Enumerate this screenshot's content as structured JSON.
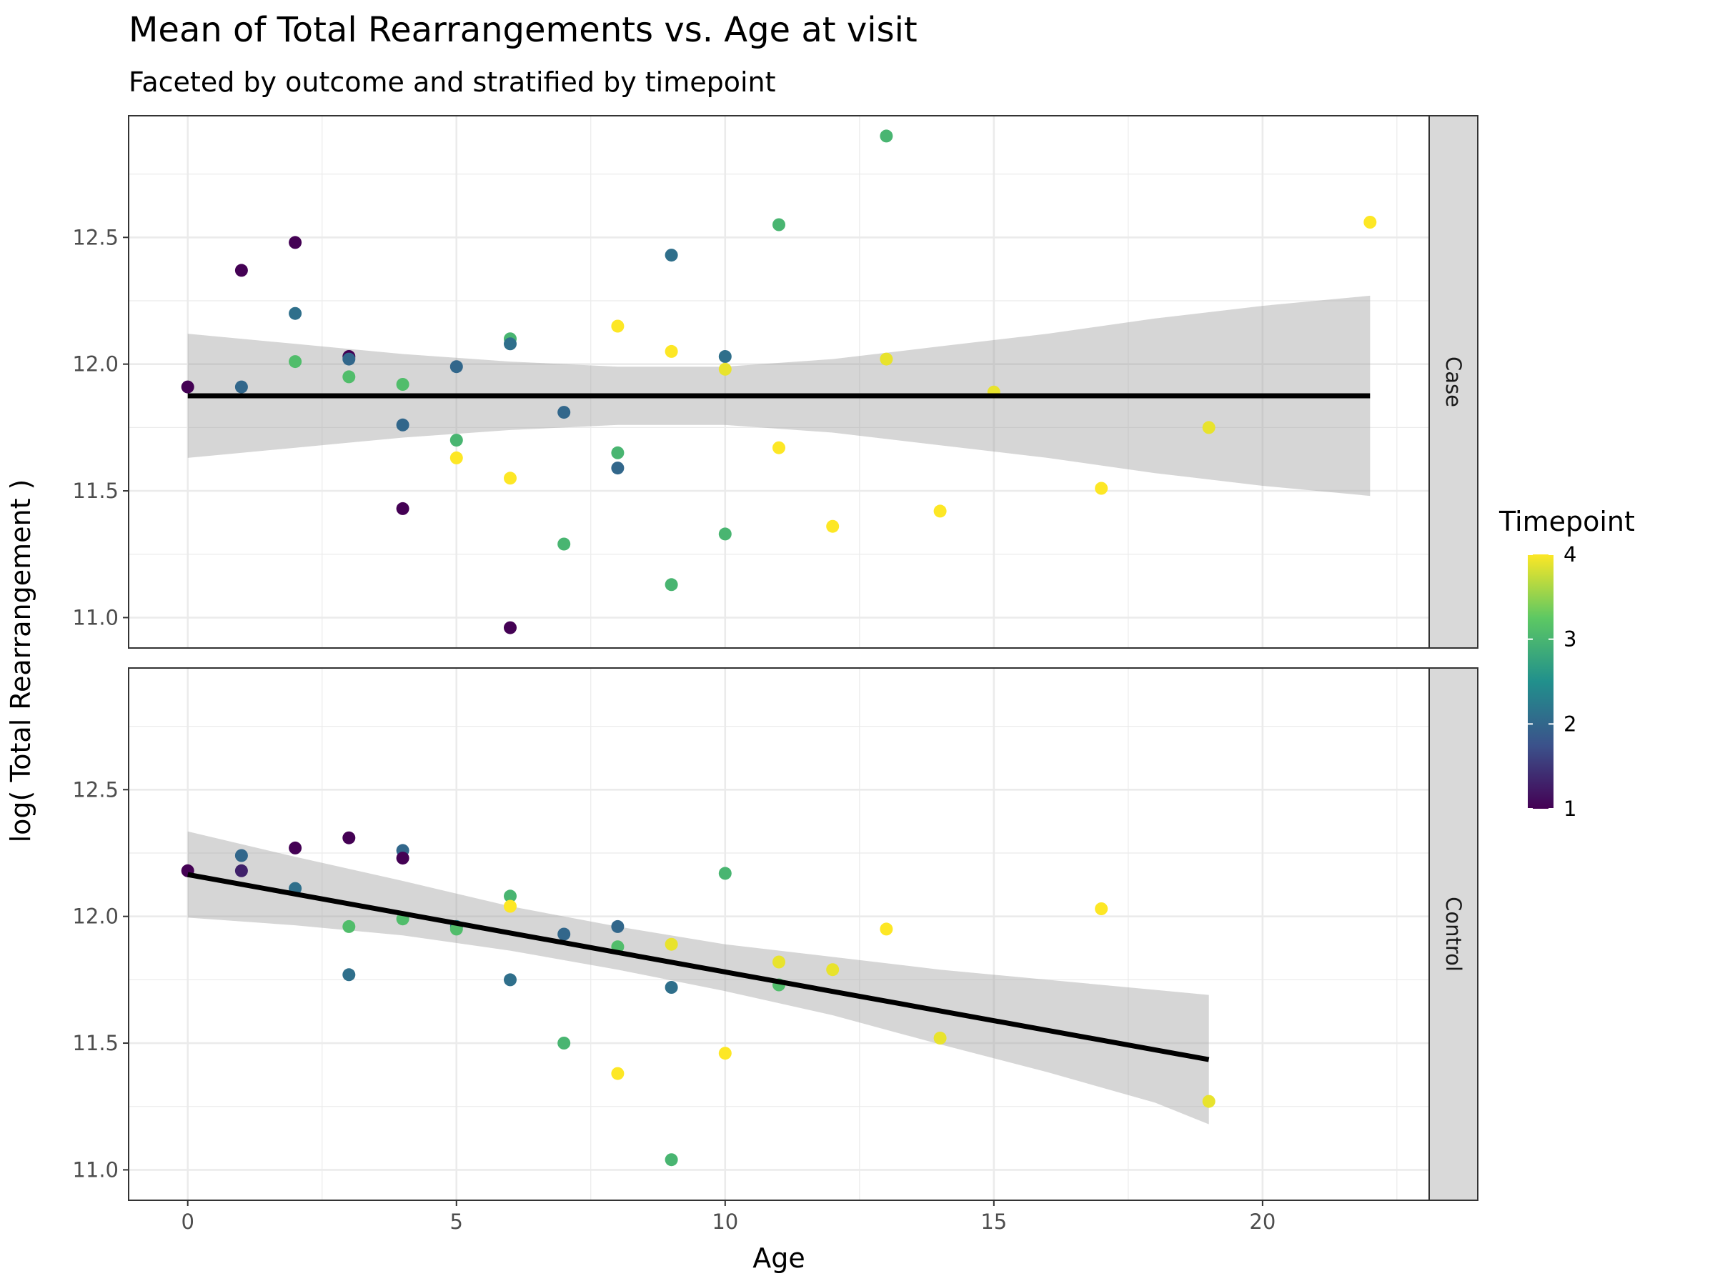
{
  "chart_data": {
    "type": "scatter",
    "title": "Mean of Total Rearrangements vs. Age at visit",
    "subtitle": "Faceted by outcome and stratified by timepoint",
    "xlabel": "Age",
    "ylabel": "log( Total Rearrangement )",
    "xlim": [
      -1.1,
      23.1
    ],
    "ylim": [
      10.88,
      12.98
    ],
    "x_ticks": [
      0,
      5,
      10,
      15,
      20
    ],
    "x_tick_labels": [
      "0",
      "5",
      "10",
      "15",
      "20"
    ],
    "y_ticks": [
      11.0,
      11.5,
      12.0,
      12.5
    ],
    "y_tick_labels": [
      "11.0",
      "11.5",
      "12.0",
      "12.5"
    ],
    "grid": true,
    "legend": {
      "title": "Timepoint",
      "placement": "right",
      "type": "colorbar",
      "ticks": [
        1,
        2,
        3,
        4
      ],
      "tick_labels": [
        "1",
        "2",
        "3",
        "4"
      ],
      "range": [
        1,
        4
      ]
    },
    "colors": {
      "scale": [
        "#440154",
        "#3b528b",
        "#21908c",
        "#5dc863",
        "#fde725"
      ],
      "fit_line": "#000000",
      "ribbon": "#999999",
      "strip_fill": "#d9d9d9",
      "panel_border": "#333333",
      "grid": "#ebebeb"
    },
    "facets": [
      {
        "label": "Case",
        "points": [
          {
            "x": 0,
            "y": 11.91,
            "t": 1.0
          },
          {
            "x": 1,
            "y": 12.37,
            "t": 1.0
          },
          {
            "x": 1,
            "y": 11.91,
            "t": 2.0
          },
          {
            "x": 2,
            "y": 12.48,
            "t": 1.0
          },
          {
            "x": 2,
            "y": 12.2,
            "t": 2.1
          },
          {
            "x": 2,
            "y": 12.01,
            "t": 3.1
          },
          {
            "x": 3,
            "y": 12.03,
            "t": 1.0
          },
          {
            "x": 3,
            "y": 12.02,
            "t": 2.0
          },
          {
            "x": 3,
            "y": 11.95,
            "t": 3.1
          },
          {
            "x": 4,
            "y": 11.92,
            "t": 3.1
          },
          {
            "x": 4,
            "y": 11.76,
            "t": 2.0
          },
          {
            "x": 4,
            "y": 11.43,
            "t": 1.0
          },
          {
            "x": 5,
            "y": 11.99,
            "t": 2.0
          },
          {
            "x": 5,
            "y": 11.7,
            "t": 3.0
          },
          {
            "x": 5,
            "y": 11.63,
            "t": 4.0
          },
          {
            "x": 6,
            "y": 12.1,
            "t": 3.0
          },
          {
            "x": 6,
            "y": 12.08,
            "t": 2.1
          },
          {
            "x": 6,
            "y": 11.55,
            "t": 4.0
          },
          {
            "x": 6,
            "y": 10.96,
            "t": 1.0
          },
          {
            "x": 7,
            "y": 11.81,
            "t": 2.0
          },
          {
            "x": 7,
            "y": 11.29,
            "t": 3.0
          },
          {
            "x": 8,
            "y": 12.15,
            "t": 4.0
          },
          {
            "x": 8,
            "y": 11.65,
            "t": 3.0
          },
          {
            "x": 8,
            "y": 11.59,
            "t": 2.0
          },
          {
            "x": 9,
            "y": 12.43,
            "t": 2.1
          },
          {
            "x": 9,
            "y": 12.05,
            "t": 4.0
          },
          {
            "x": 9,
            "y": 11.13,
            "t": 3.0
          },
          {
            "x": 10,
            "y": 12.03,
            "t": 2.1
          },
          {
            "x": 10,
            "y": 11.98,
            "t": 3.9
          },
          {
            "x": 10,
            "y": 11.33,
            "t": 3.0
          },
          {
            "x": 11,
            "y": 12.55,
            "t": 3.0
          },
          {
            "x": 11,
            "y": 11.67,
            "t": 4.0
          },
          {
            "x": 12,
            "y": 11.36,
            "t": 4.0
          },
          {
            "x": 13,
            "y": 12.9,
            "t": 3.0
          },
          {
            "x": 13,
            "y": 12.02,
            "t": 3.9
          },
          {
            "x": 14,
            "y": 11.42,
            "t": 4.0
          },
          {
            "x": 15,
            "y": 11.89,
            "t": 3.9
          },
          {
            "x": 17,
            "y": 11.51,
            "t": 4.0
          },
          {
            "x": 19,
            "y": 11.75,
            "t": 3.9
          },
          {
            "x": 22,
            "y": 12.56,
            "t": 4.0
          }
        ],
        "fit": {
          "x": [
            0,
            22
          ],
          "y": [
            11.875,
            11.875
          ]
        },
        "ribbon": {
          "x": [
            0,
            2,
            4,
            6,
            8,
            10,
            12,
            14,
            16,
            18,
            20,
            22
          ],
          "lower": [
            11.63,
            11.67,
            11.71,
            11.74,
            11.76,
            11.76,
            11.73,
            11.68,
            11.63,
            11.57,
            11.52,
            11.48
          ],
          "upper": [
            12.12,
            12.08,
            12.04,
            12.01,
            11.99,
            11.99,
            12.02,
            12.07,
            12.12,
            12.18,
            12.23,
            12.27
          ]
        }
      },
      {
        "label": "Control",
        "points": [
          {
            "x": 0,
            "y": 12.18,
            "t": 1.0
          },
          {
            "x": 1,
            "y": 12.24,
            "t": 2.0
          },
          {
            "x": 1,
            "y": 12.18,
            "t": 1.3
          },
          {
            "x": 2,
            "y": 12.27,
            "t": 1.0
          },
          {
            "x": 2,
            "y": 12.11,
            "t": 2.1
          },
          {
            "x": 3,
            "y": 12.31,
            "t": 1.0
          },
          {
            "x": 3,
            "y": 11.96,
            "t": 3.1
          },
          {
            "x": 3,
            "y": 11.77,
            "t": 2.1
          },
          {
            "x": 4,
            "y": 12.26,
            "t": 2.0
          },
          {
            "x": 4,
            "y": 12.23,
            "t": 1.0
          },
          {
            "x": 4,
            "y": 11.99,
            "t": 3.1
          },
          {
            "x": 5,
            "y": 11.96,
            "t": 2.3
          },
          {
            "x": 5,
            "y": 11.95,
            "t": 3.1
          },
          {
            "x": 6,
            "y": 12.08,
            "t": 3.0
          },
          {
            "x": 6,
            "y": 12.04,
            "t": 4.0
          },
          {
            "x": 6,
            "y": 11.75,
            "t": 2.1
          },
          {
            "x": 7,
            "y": 11.93,
            "t": 2.0
          },
          {
            "x": 7,
            "y": 11.5,
            "t": 3.0
          },
          {
            "x": 8,
            "y": 11.96,
            "t": 2.0
          },
          {
            "x": 8,
            "y": 11.88,
            "t": 3.1
          },
          {
            "x": 8,
            "y": 11.38,
            "t": 4.0
          },
          {
            "x": 9,
            "y": 11.89,
            "t": 3.9
          },
          {
            "x": 9,
            "y": 11.72,
            "t": 2.1
          },
          {
            "x": 9,
            "y": 11.04,
            "t": 3.0
          },
          {
            "x": 10,
            "y": 12.17,
            "t": 3.0
          },
          {
            "x": 10,
            "y": 11.46,
            "t": 4.0
          },
          {
            "x": 11,
            "y": 11.82,
            "t": 3.9
          },
          {
            "x": 11,
            "y": 11.73,
            "t": 3.1
          },
          {
            "x": 12,
            "y": 11.79,
            "t": 3.9
          },
          {
            "x": 13,
            "y": 11.95,
            "t": 4.0
          },
          {
            "x": 14,
            "y": 11.52,
            "t": 3.9
          },
          {
            "x": 17,
            "y": 12.03,
            "t": 4.0
          },
          {
            "x": 19,
            "y": 11.27,
            "t": 3.9
          }
        ],
        "fit": {
          "x": [
            0,
            19
          ],
          "y": [
            12.165,
            11.435
          ]
        },
        "ribbon": {
          "x": [
            0,
            2,
            4,
            6,
            8,
            10,
            12,
            14,
            16,
            18,
            19
          ],
          "lower": [
            11.995,
            11.965,
            11.925,
            11.865,
            11.79,
            11.705,
            11.61,
            11.495,
            11.385,
            11.265,
            11.18
          ],
          "upper": [
            12.335,
            12.235,
            12.14,
            12.04,
            11.96,
            11.89,
            11.84,
            11.79,
            11.75,
            11.71,
            11.69
          ]
        }
      }
    ]
  }
}
